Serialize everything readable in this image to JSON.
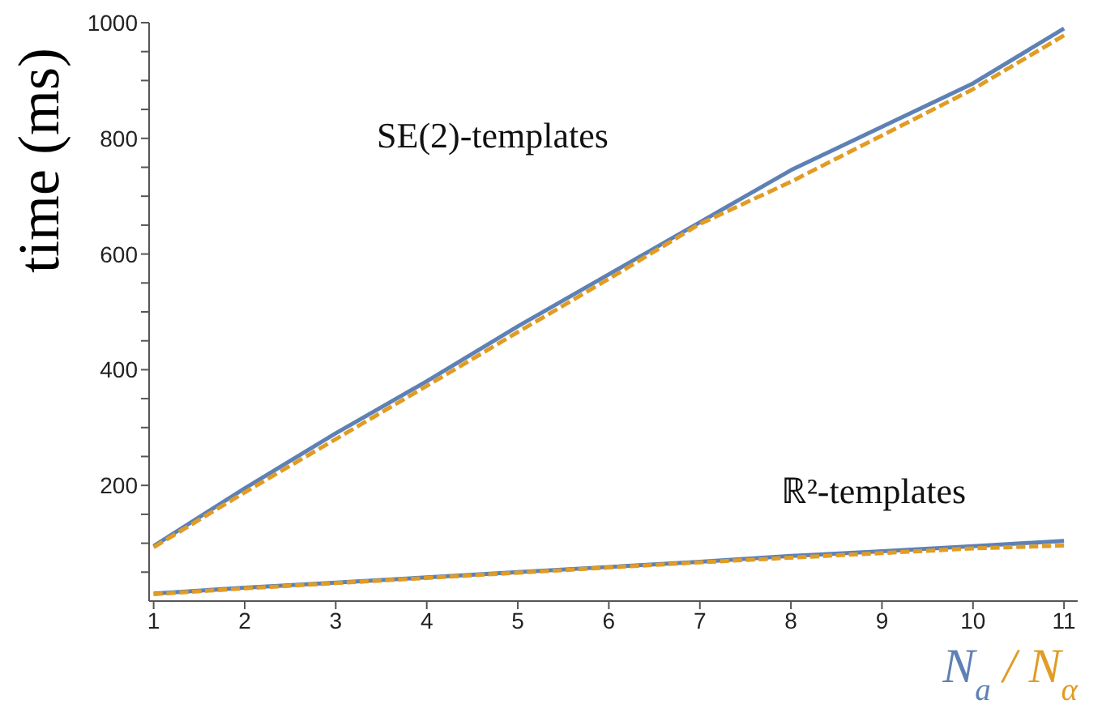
{
  "chart_data": {
    "type": "line",
    "xlabel": "N$_{a}$ / N$_{α}$",
    "ylabel": "time (ms)",
    "x": [
      1,
      2,
      3,
      4,
      5,
      6,
      7,
      8,
      9,
      10,
      11
    ],
    "series": [
      {
        "color": "#5e81b5",
        "line_style": "solid",
        "values": [
          95,
          195,
          290,
          380,
          475,
          565,
          655,
          745,
          820,
          895,
          990
        ]
      },
      {
        "color": "#e19c24",
        "line_style": "dashed",
        "values": [
          93,
          188,
          280,
          372,
          465,
          557,
          652,
          725,
          805,
          885,
          978
        ]
      },
      {
        "color": "#5e81b5",
        "line_style": "solid",
        "values": [
          13,
          23,
          32,
          41,
          50,
          59,
          68,
          78,
          86,
          95,
          104
        ]
      },
      {
        "color": "#e19c24",
        "line_style": "dashed",
        "values": [
          12,
          22,
          31,
          40,
          49,
          58,
          67,
          75,
          83,
          91,
          96
        ]
      }
    ],
    "xlim": [
      0.95,
      11.15
    ],
    "xticks": [
      1,
      2,
      3,
      4,
      5,
      6,
      7,
      8,
      9,
      10,
      11
    ],
    "ylim": [
      0,
      1000
    ],
    "yticks": [
      {
        "value": 50,
        "label": null
      },
      {
        "value": 100,
        "label": null
      },
      {
        "value": 150,
        "label": null
      },
      200,
      {
        "value": 250,
        "label": null
      },
      {
        "value": 300,
        "label": null
      },
      {
        "value": 350,
        "label": null
      },
      400,
      {
        "value": 450,
        "label": null
      },
      {
        "value": 500,
        "label": null
      },
      {
        "value": 550,
        "label": null
      },
      600,
      {
        "value": 650,
        "label": null
      },
      {
        "value": 700,
        "label": null
      },
      {
        "value": 750,
        "label": null
      },
      800,
      {
        "value": 850,
        "label": null
      },
      {
        "value": 900,
        "label": null
      },
      {
        "value": 950,
        "label": null
      },
      1000
    ],
    "annotations": [
      "SE(2)-templates",
      "ℝ²-templates"
    ],
    "grid": false,
    "legend": false,
    "marker": "none"
  }
}
